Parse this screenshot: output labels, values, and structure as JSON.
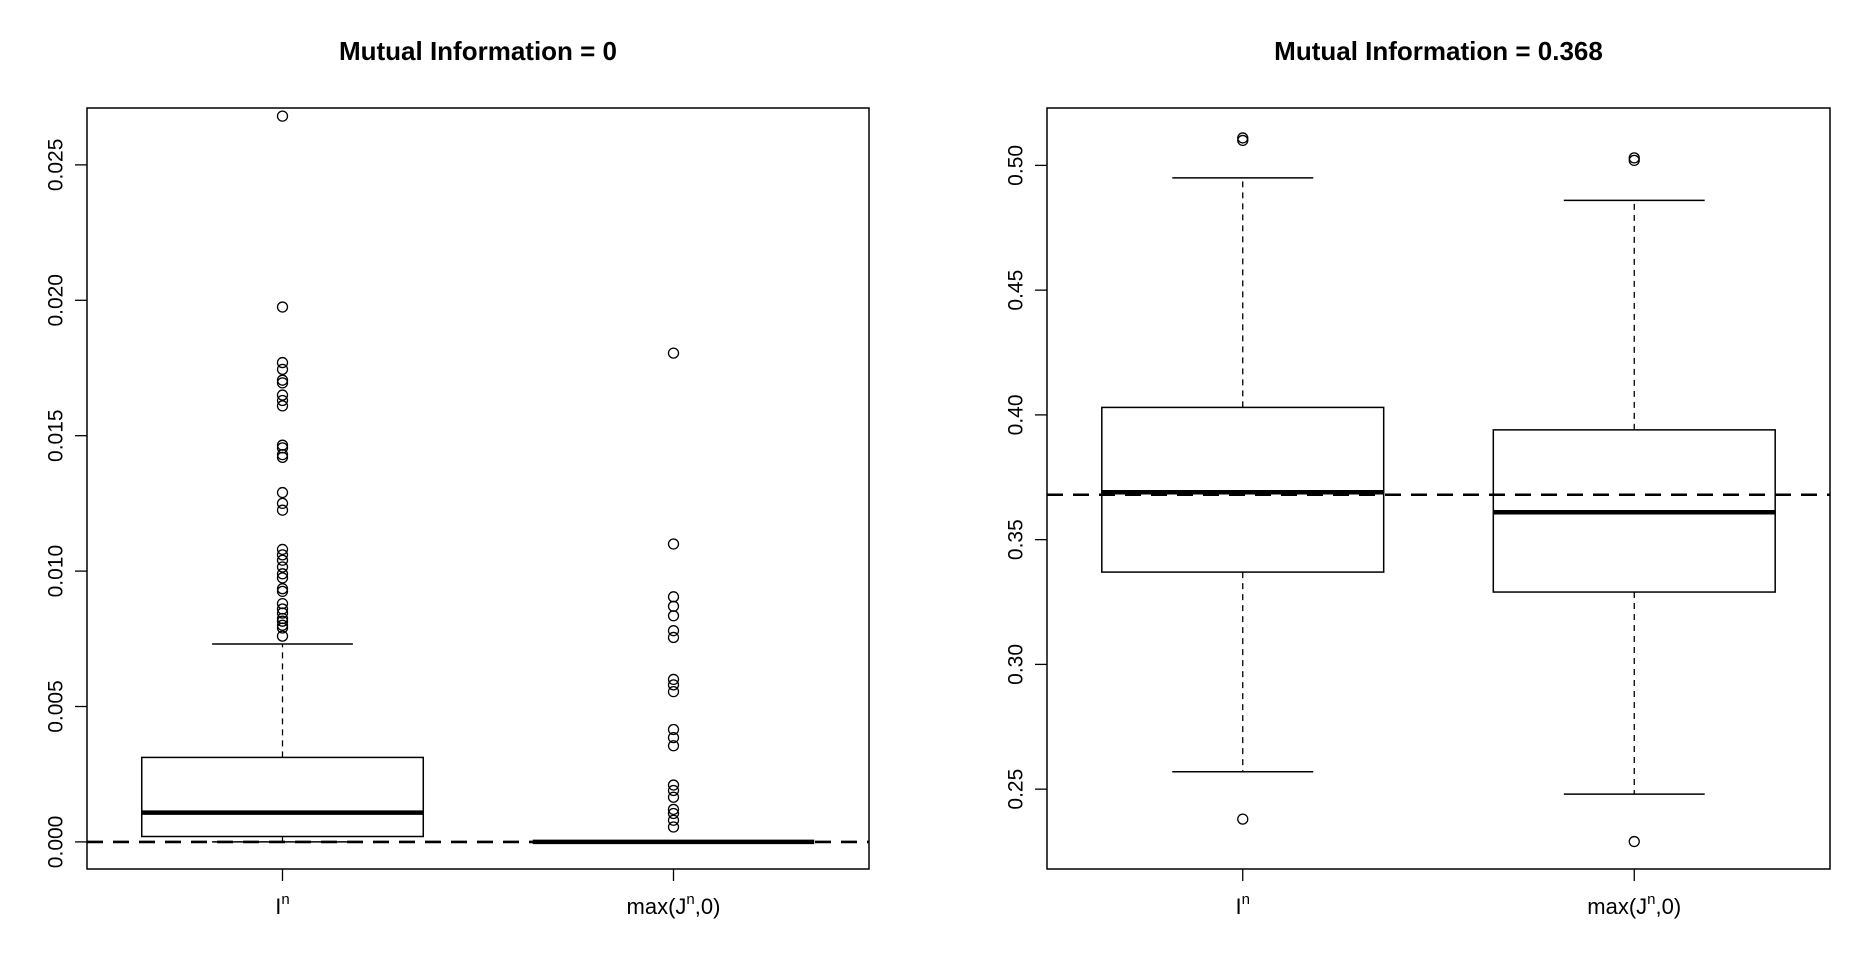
{
  "chart_data": [
    {
      "type": "box",
      "title": "Mutual Information = 0",
      "categories": [
        "I^n",
        "max(J^n,0)"
      ],
      "category_labels": [
        {
          "base": "I",
          "sup": "n",
          "tail": ""
        },
        {
          "base": "max(J",
          "sup": "n",
          "tail": ",0)"
        }
      ],
      "ylim": [
        -0.001,
        0.0271
      ],
      "yticks": [
        0.0,
        0.005,
        0.01,
        0.015,
        0.02,
        0.025
      ],
      "ytick_labels": [
        "0.000",
        "0.005",
        "0.010",
        "0.015",
        "0.020",
        "0.025"
      ],
      "reference_line": 0.0,
      "boxes": [
        {
          "name": "I^n",
          "whisker_low": 0.0,
          "q1": 0.0002,
          "median": 0.00108,
          "q3": 0.00312,
          "whisker_high": 0.00731,
          "outliers": [
            0.0268,
            0.01975,
            0.0177,
            0.01745,
            0.01705,
            0.01695,
            0.0165,
            0.0163,
            0.0161,
            0.01465,
            0.01455,
            0.0143,
            0.0142,
            0.0129,
            0.0125,
            0.01225,
            0.0108,
            0.0106,
            0.0104,
            0.01015,
            0.0099,
            0.00975,
            0.00935,
            0.00925,
            0.0088,
            0.0086,
            0.00845,
            0.00825,
            0.00815,
            0.008,
            0.0079,
            0.0076
          ]
        },
        {
          "name": "max(J^n,0)",
          "whisker_low": 0.0,
          "q1": 0.0,
          "median": 0.0,
          "q3": 0.0,
          "whisker_high": 0.0,
          "outliers": [
            0.01805,
            0.011,
            0.00905,
            0.0087,
            0.00835,
            0.0078,
            0.00755,
            0.006,
            0.0058,
            0.00555,
            0.00415,
            0.00385,
            0.00355,
            0.0021,
            0.0019,
            0.00165,
            0.0012,
            0.00105,
            0.0008,
            0.00055
          ]
        }
      ]
    },
    {
      "type": "box",
      "title": "Mutual Information = 0.368",
      "categories": [
        "I^n",
        "max(J^n,0)"
      ],
      "category_labels": [
        {
          "base": "I",
          "sup": "n",
          "tail": ""
        },
        {
          "base": "max(J",
          "sup": "n",
          "tail": ",0)"
        }
      ],
      "ylim": [
        0.218,
        0.523
      ],
      "yticks": [
        0.25,
        0.3,
        0.35,
        0.4,
        0.45,
        0.5
      ],
      "ytick_labels": [
        "0.25",
        "0.30",
        "0.35",
        "0.40",
        "0.45",
        "0.50"
      ],
      "reference_line": 0.368,
      "boxes": [
        {
          "name": "I^n",
          "whisker_low": 0.257,
          "q1": 0.337,
          "median": 0.369,
          "q3": 0.403,
          "whisker_high": 0.495,
          "outliers": [
            0.511,
            0.51,
            0.238
          ]
        },
        {
          "name": "max(J^n,0)",
          "whisker_low": 0.248,
          "q1": 0.329,
          "median": 0.361,
          "q3": 0.394,
          "whisker_high": 0.486,
          "outliers": [
            0.503,
            0.502,
            0.229
          ]
        }
      ]
    }
  ]
}
